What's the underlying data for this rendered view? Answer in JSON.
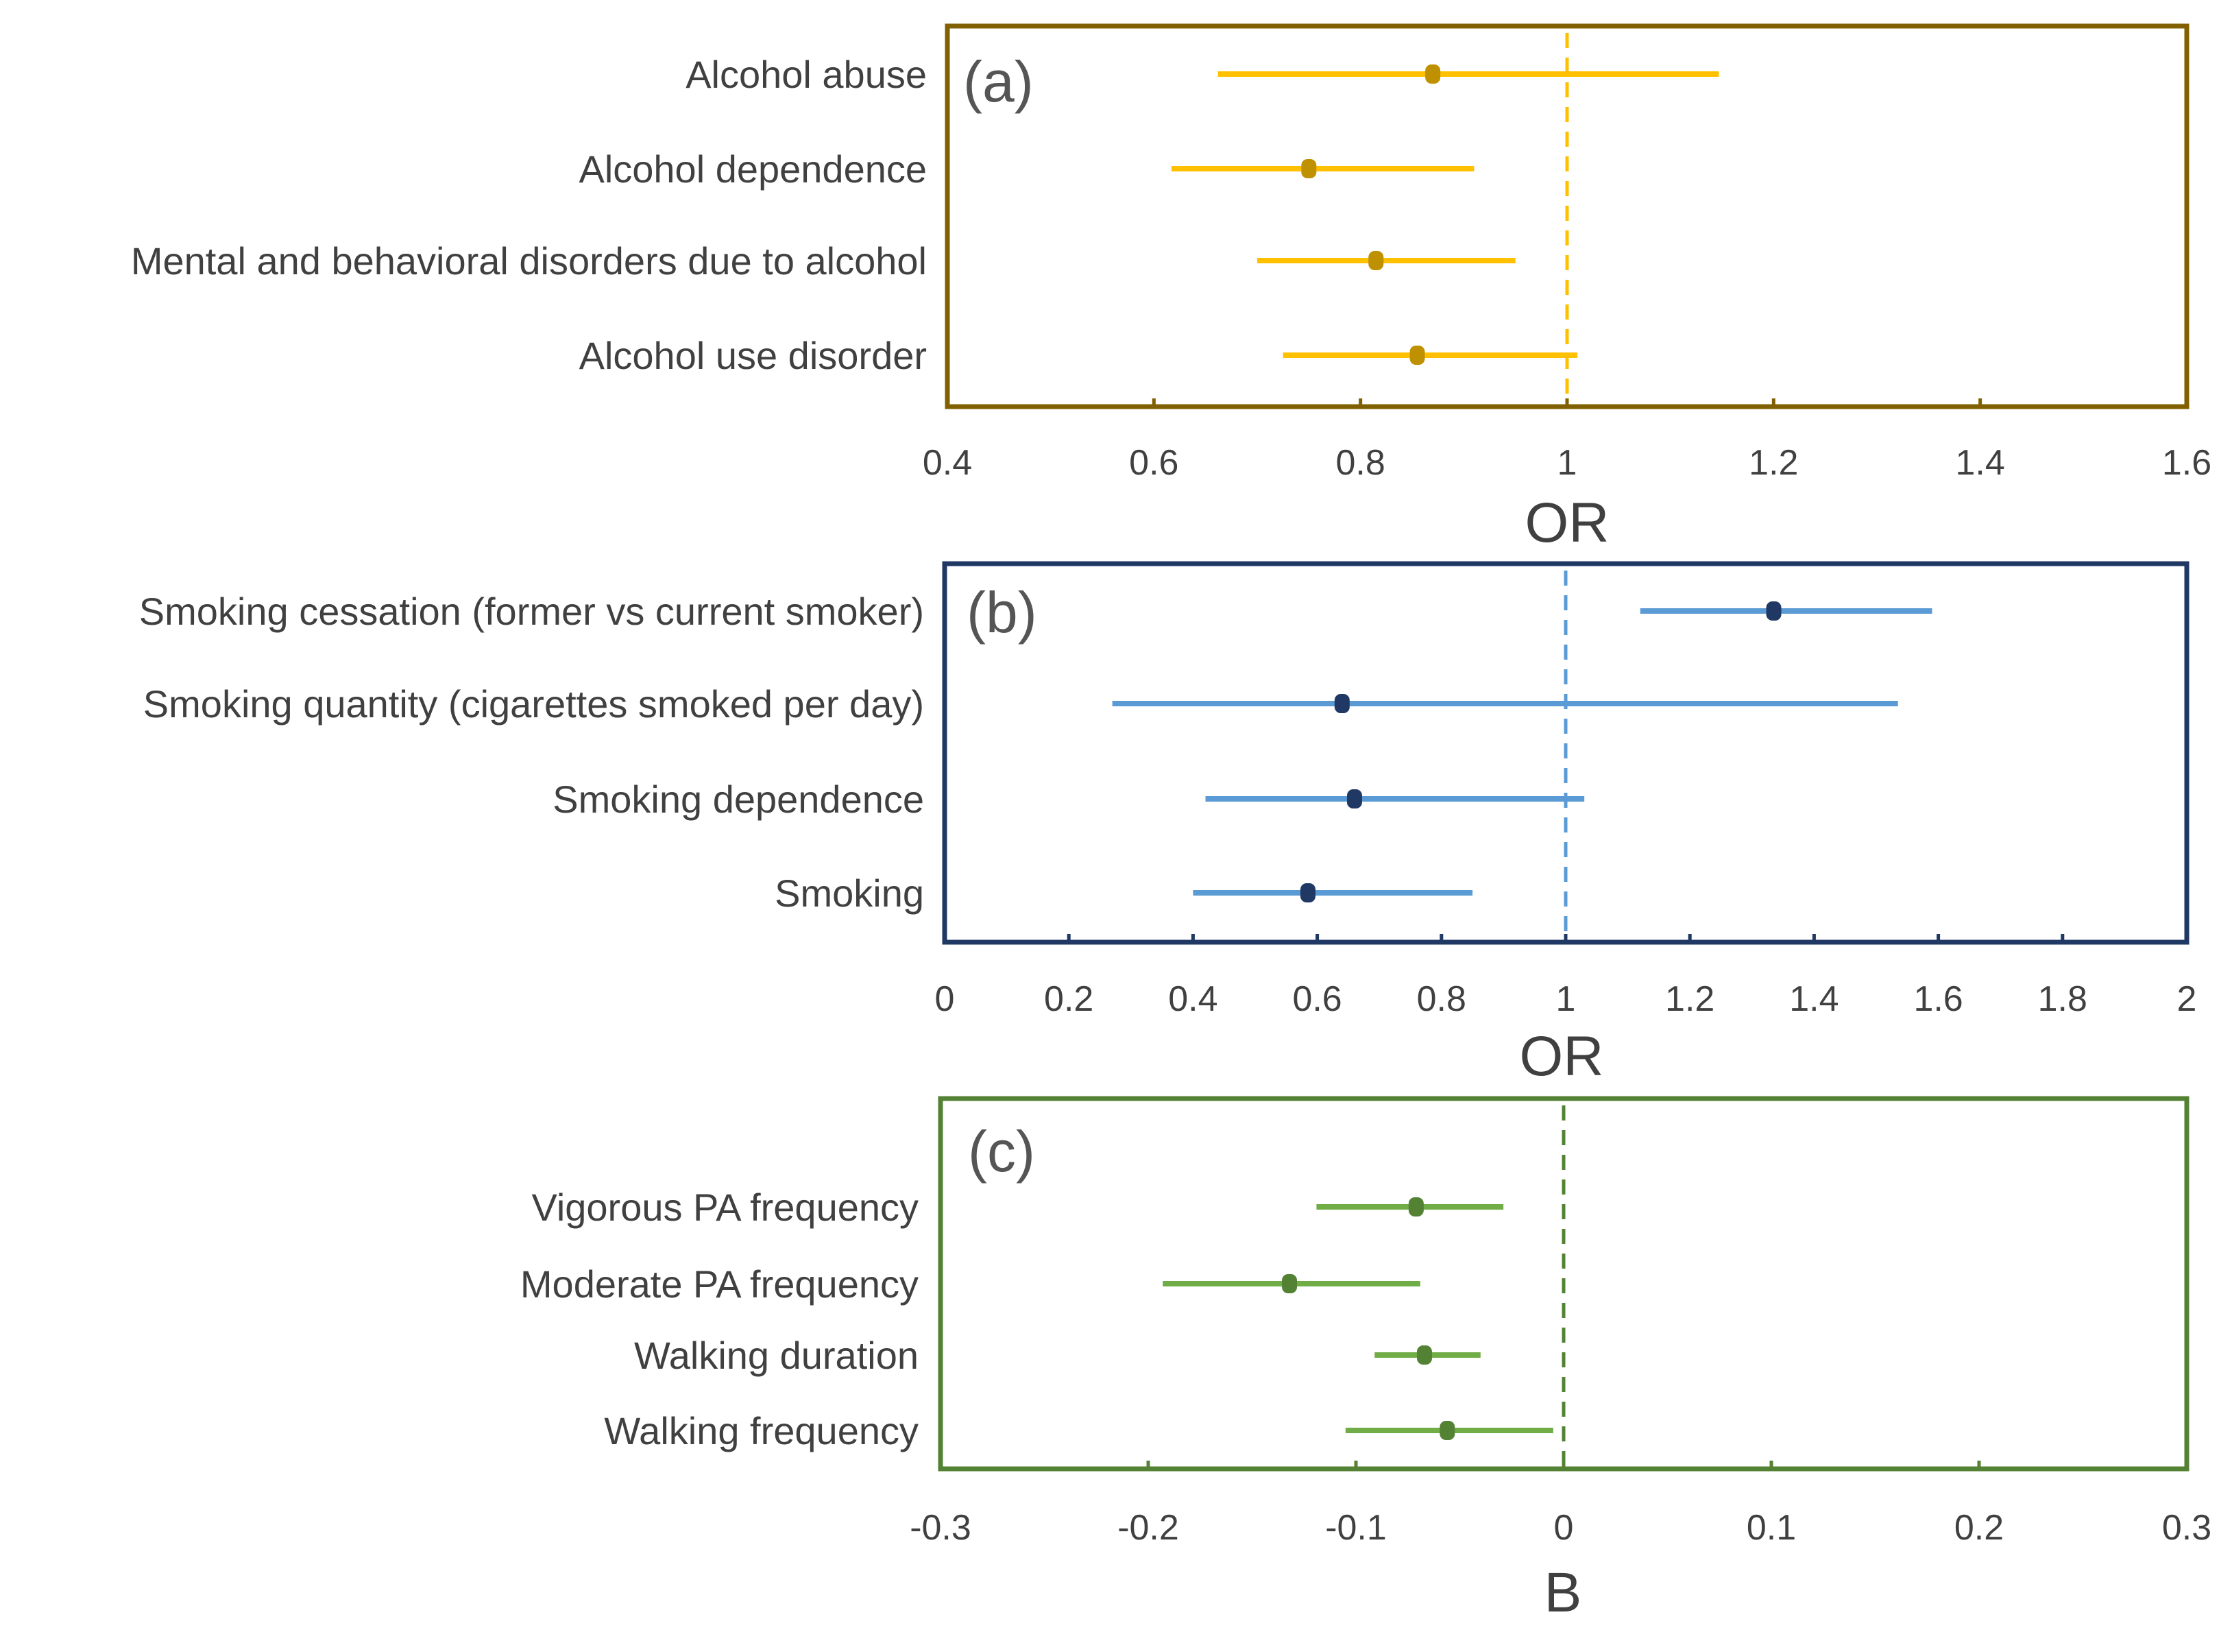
{
  "chart_data": [
    {
      "type": "forest",
      "panel_label": "(a)",
      "xlabel": "OR",
      "xlim": [
        0.4,
        1.6
      ],
      "xticks": [
        0.4,
        0.6,
        0.8,
        1,
        1.2,
        1.4,
        1.6
      ],
      "xtick_labels": [
        "0.4",
        "0.6",
        "0.8",
        "1",
        "1.2",
        "1.4",
        "1.6"
      ],
      "reference_value": 1,
      "colors": {
        "frame": "#806000",
        "line": "#FFC000",
        "point": "#BF9000",
        "reference": "#FFC000"
      },
      "categories": [
        "Alcohol abuse",
        "Alcohol dependence",
        "Mental and behavioral disorders due to alcohol",
        "Alcohol use disorder"
      ],
      "estimates": [
        0.87,
        0.75,
        0.815,
        0.855
      ],
      "lower": [
        0.662,
        0.617,
        0.7,
        0.725
      ],
      "upper": [
        1.147,
        0.91,
        0.95,
        1.01
      ]
    },
    {
      "type": "forest",
      "panel_label": "(b)",
      "xlabel": "OR",
      "xlim": [
        0,
        2
      ],
      "xticks": [
        0,
        0.2,
        0.4,
        0.6,
        0.8,
        1,
        1.2,
        1.4,
        1.6,
        1.8,
        2
      ],
      "xtick_labels": [
        "0",
        "0.2",
        "0.4",
        "0.6",
        "0.8",
        "1",
        "1.2",
        "1.4",
        "1.6",
        "1.8",
        "2"
      ],
      "reference_value": 1,
      "colors": {
        "frame": "#203864",
        "line": "#5B9BD5",
        "point": "#1F3864",
        "reference": "#5B9BD5"
      },
      "categories": [
        "Smoking cessation (former vs current smoker)",
        "Smoking quantity (cigarettes smoked per day)",
        "Smoking dependence",
        "Smoking"
      ],
      "estimates": [
        1.335,
        0.64,
        0.66,
        0.585
      ],
      "lower": [
        1.12,
        0.27,
        0.42,
        0.4
      ],
      "upper": [
        1.59,
        1.535,
        1.03,
        0.85
      ]
    },
    {
      "type": "forest",
      "panel_label": "(c)",
      "xlabel": "B",
      "xlim": [
        -0.3,
        0.3
      ],
      "xticks": [
        -0.3,
        -0.2,
        -0.1,
        0,
        0.1,
        0.2,
        0.3
      ],
      "xtick_labels": [
        "-0.3",
        "-0.2",
        "-0.1",
        "0",
        "0.1",
        "0.2",
        "0.3"
      ],
      "reference_value": 0,
      "colors": {
        "frame": "#548235",
        "line": "#70AD47",
        "point": "#548235",
        "reference": "#548235"
      },
      "categories": [
        "Vigorous PA frequency",
        "Moderate PA frequency",
        "Walking duration",
        "Walking frequency"
      ],
      "estimates": [
        -0.071,
        -0.132,
        -0.067,
        -0.056
      ],
      "lower": [
        -0.119,
        -0.193,
        -0.091,
        -0.105
      ],
      "upper": [
        -0.029,
        -0.069,
        -0.04,
        -0.005
      ]
    }
  ]
}
